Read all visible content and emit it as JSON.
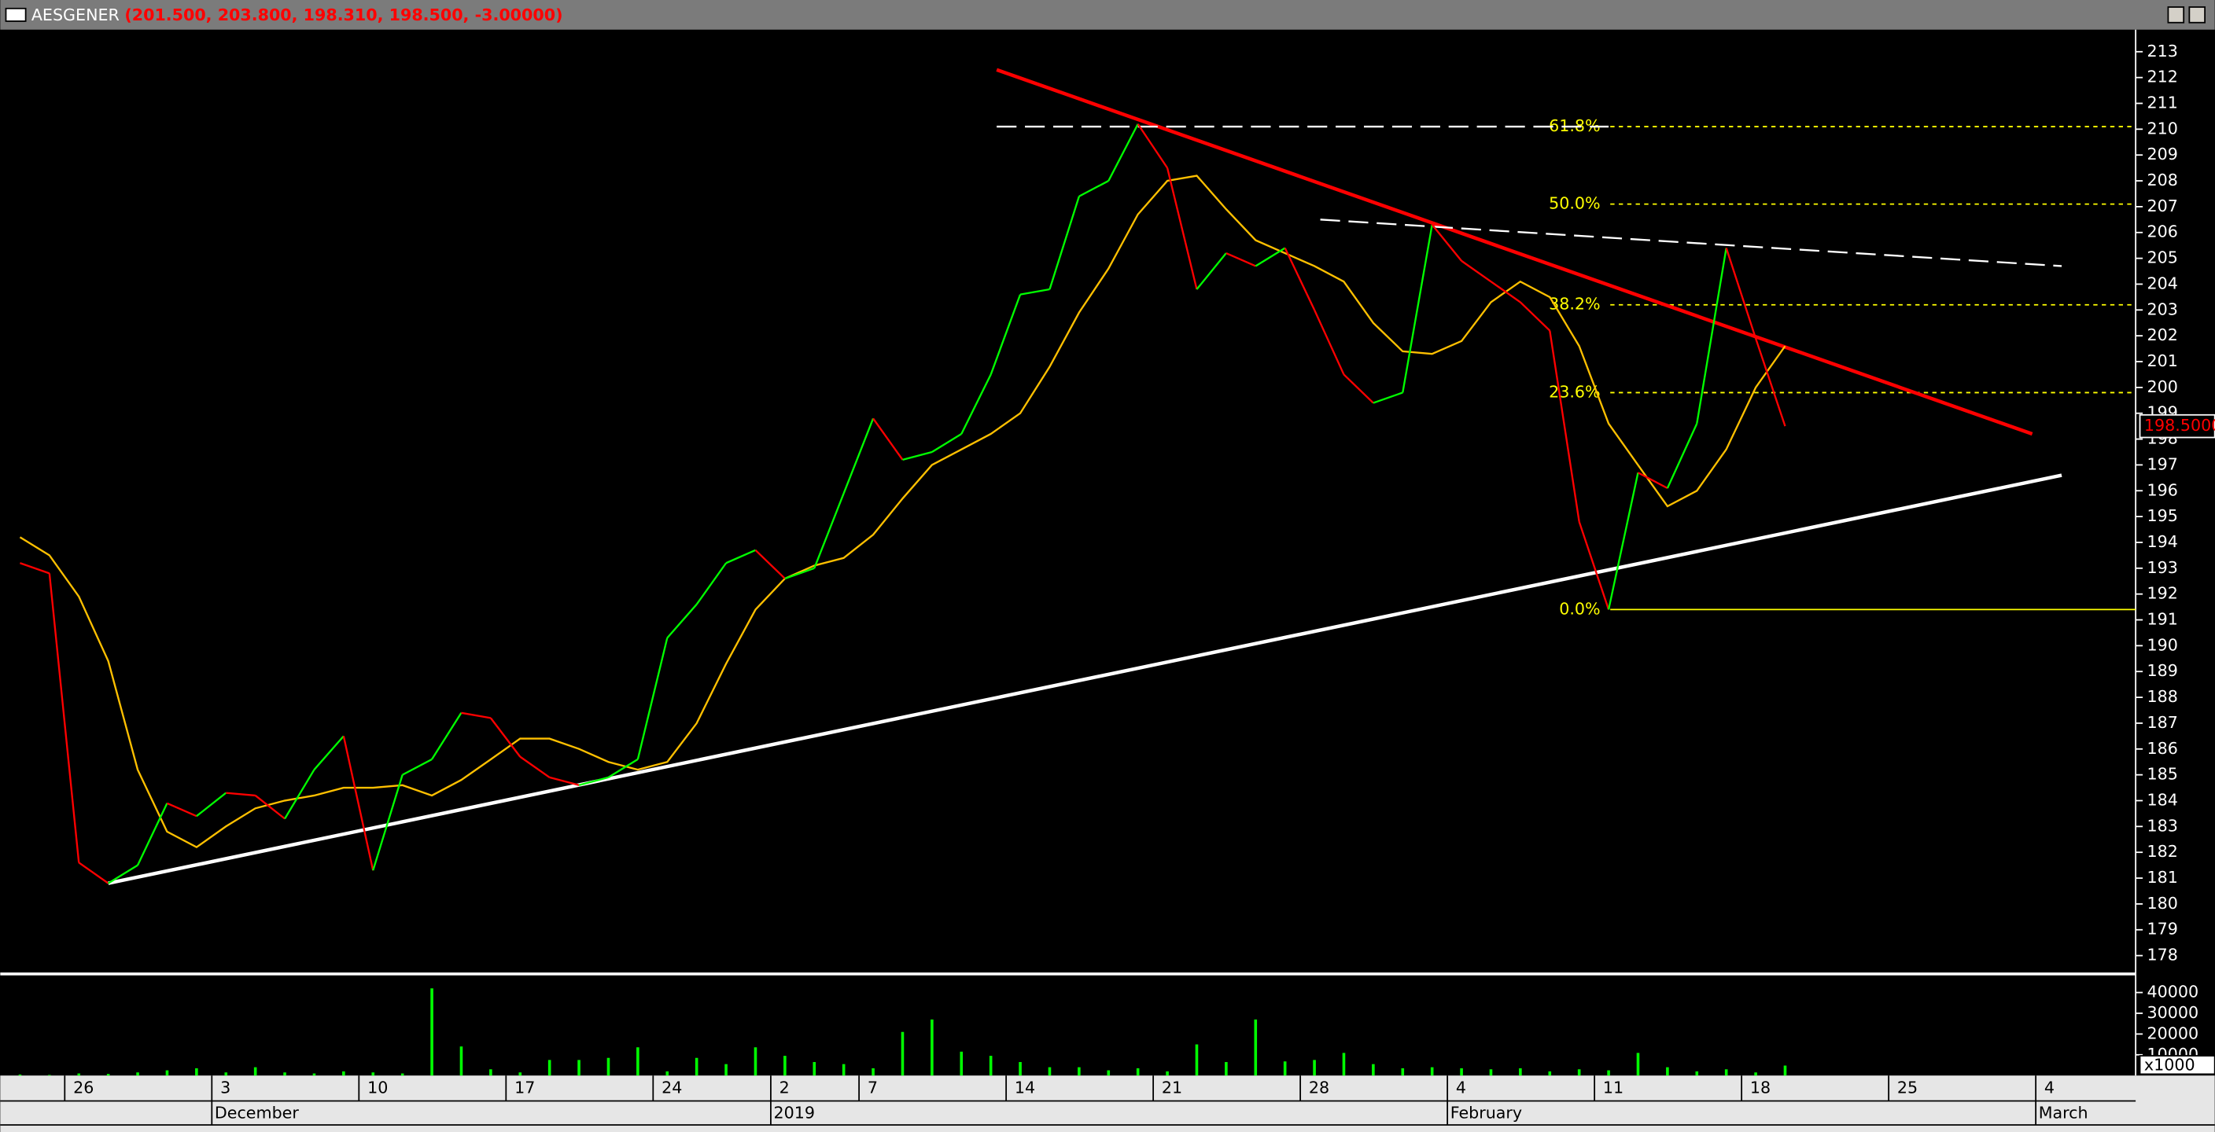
{
  "chart_data": {
    "type": "line",
    "title": "AESGENER",
    "subtitle": "(201.500, 203.800, 198.310, 198.500, -3.00000)",
    "categories": [
      null,
      null,
      "26",
      null,
      null,
      null,
      null,
      "3",
      null,
      null,
      null,
      null,
      "10",
      null,
      null,
      null,
      null,
      "17",
      null,
      null,
      null,
      null,
      "24",
      null,
      null,
      null,
      "2",
      null,
      null,
      "7",
      null,
      null,
      null,
      null,
      "14",
      null,
      null,
      null,
      null,
      "21",
      null,
      null,
      null,
      null,
      "28",
      null,
      null,
      null,
      null,
      "4",
      null,
      null,
      null,
      null,
      "11",
      null,
      null,
      null,
      null,
      "18",
      null,
      null,
      null,
      null,
      "25",
      null,
      null,
      null,
      null,
      "4",
      null,
      null
    ],
    "months": [
      null,
      null,
      null,
      null,
      null,
      null,
      null,
      "December",
      null,
      null,
      null,
      null,
      null,
      null,
      null,
      null,
      null,
      null,
      null,
      null,
      null,
      null,
      null,
      null,
      null,
      null,
      "2019",
      null,
      null,
      null,
      null,
      null,
      null,
      null,
      null,
      null,
      null,
      null,
      null,
      null,
      null,
      null,
      null,
      null,
      null,
      null,
      null,
      null,
      null,
      "February",
      null,
      null,
      null,
      null,
      null,
      null,
      null,
      null,
      null,
      null,
      null,
      null,
      null,
      null,
      null,
      null,
      null,
      null,
      null,
      "March",
      null,
      null
    ],
    "series": [
      {
        "up_color": "#00ff00",
        "down_color": "#ff0000",
        "values": [
          193.2,
          192.8,
          181.6,
          180.8,
          181.5,
          183.9,
          183.4,
          184.3,
          184.2,
          183.3,
          185.2,
          186.5,
          181.3,
          185.0,
          185.6,
          187.4,
          187.2,
          185.7,
          184.9,
          184.6,
          184.9,
          185.6,
          190.3,
          191.6,
          193.2,
          193.7,
          192.6,
          193.0,
          195.9,
          198.8,
          197.2,
          197.5,
          198.2,
          200.5,
          203.6,
          203.8,
          207.4,
          208.0,
          210.2,
          208.5,
          203.8,
          205.2,
          204.7,
          205.4,
          203.0,
          200.5,
          199.4,
          199.8,
          206.3,
          204.9,
          204.1,
          203.3,
          202.2,
          194.8,
          191.4,
          196.7,
          196.1,
          198.6,
          205.4,
          201.9,
          198.5,
          null,
          null,
          null,
          null,
          null,
          null,
          null,
          null,
          null,
          null,
          null
        ]
      },
      {
        "color": "#ffc000",
        "values": [
          194.2,
          193.5,
          191.9,
          189.4,
          185.2,
          182.8,
          182.2,
          183.0,
          183.7,
          184.0,
          184.2,
          184.5,
          184.5,
          184.6,
          184.2,
          184.8,
          185.6,
          186.4,
          186.4,
          186.0,
          185.5,
          185.2,
          185.5,
          187.0,
          189.3,
          191.4,
          192.6,
          193.1,
          193.4,
          194.3,
          195.7,
          197.0,
          197.6,
          198.2,
          199.0,
          200.8,
          202.9,
          204.6,
          206.7,
          208.0,
          208.2,
          206.9,
          205.7,
          205.2,
          204.7,
          204.1,
          202.5,
          201.4,
          201.3,
          201.8,
          203.3,
          204.1,
          203.5,
          201.6,
          198.6,
          197.0,
          195.4,
          196.0,
          197.6,
          200.0,
          201.6,
          null,
          null,
          null,
          null,
          null,
          null,
          null,
          null,
          null,
          null,
          null
        ]
      }
    ],
    "ylim": [
      177.4,
      213.8
    ],
    "yticks": [
      178,
      179,
      180,
      181,
      182,
      183,
      184,
      185,
      186,
      187,
      188,
      189,
      190,
      191,
      192,
      193,
      194,
      195,
      196,
      197,
      198,
      199,
      200,
      201,
      202,
      203,
      204,
      205,
      206,
      207,
      208,
      209,
      210,
      211,
      212,
      213
    ],
    "last": {
      "value": 198.5,
      "label": "198.5000",
      "color": "#ff0000"
    },
    "fib_color": "#ffff00",
    "fib_levels": [
      {
        "label": "61.8%",
        "price": 210.1
      },
      {
        "label": "50.0%",
        "price": 207.1
      },
      {
        "label": "38.2%",
        "price": 203.2
      },
      {
        "label": "23.6%",
        "price": 199.8
      },
      {
        "label": "0.0%",
        "price": 191.4
      }
    ],
    "trendlines": [
      {
        "color": "#ff0000",
        "dashed": false,
        "from": [
          33.2,
          212.3
        ],
        "to": [
          68.4,
          198.2
        ]
      },
      {
        "color": "#ffffff",
        "dashed": false,
        "from": [
          3,
          180.8
        ],
        "to": [
          69.4,
          196.6
        ]
      },
      {
        "color": "#ffffff",
        "dashed": true,
        "from": [
          44.2,
          206.5
        ],
        "to": [
          69.4,
          204.7
        ]
      },
      {
        "color": "#ffffff",
        "dashed": true,
        "from": [
          33.2,
          210.1
        ],
        "to": [
          54,
          210.1
        ]
      }
    ],
    "volume": {
      "color": "#00ff00",
      "multiplier": "x1000",
      "ylim": [
        0,
        47600
      ],
      "yticks": [
        10000,
        20000,
        30000,
        40000
      ],
      "values": [
        500,
        300,
        1000,
        800,
        1500,
        2500,
        3500,
        1500,
        4000,
        1500,
        1000,
        2000,
        1500,
        1000,
        42000,
        14000,
        3000,
        1500,
        7500,
        7500,
        8500,
        13600,
        2000,
        8500,
        5500,
        13600,
        9500,
        6500,
        5500,
        3500,
        21000,
        27000,
        11500,
        9500,
        6500,
        4000,
        4000,
        2500,
        3500,
        2000,
        15000,
        6500,
        27000,
        6800,
        7500,
        10900,
        5500,
        3500,
        4000,
        3500,
        3000,
        3500,
        2000,
        3000,
        2500,
        10900,
        4000,
        2000,
        3000,
        1500,
        4800,
        null,
        null,
        null,
        null,
        null,
        null,
        null,
        null,
        null,
        null,
        null
      ]
    }
  }
}
